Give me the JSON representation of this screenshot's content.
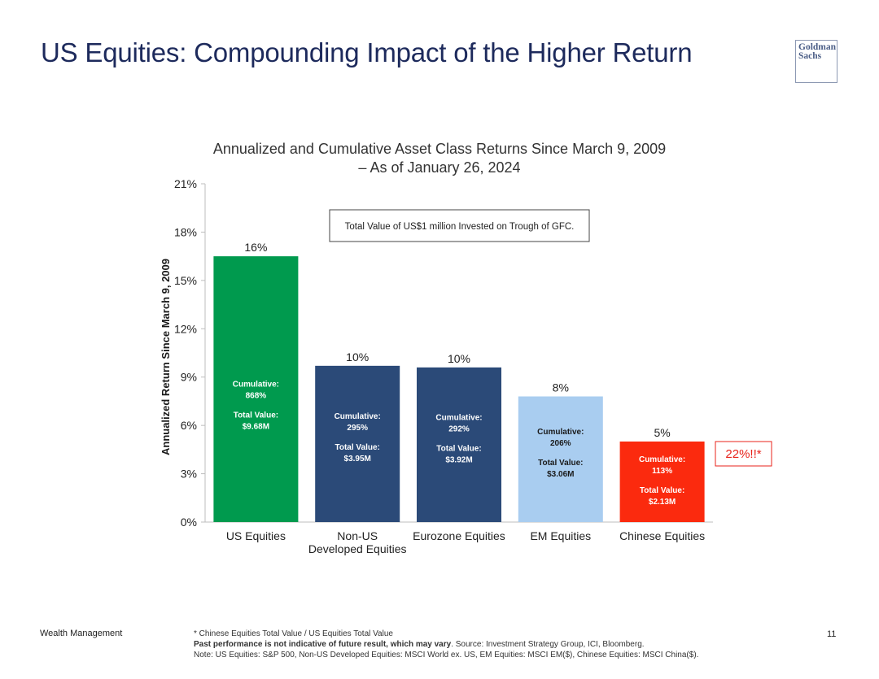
{
  "slide": {
    "title": "US Equities: Compounding Impact of the Higher Return",
    "logo_lines": [
      "Goldman",
      "Sachs"
    ],
    "footer_left": "Wealth Management",
    "page_number": "11",
    "footnote_1": "* Chinese Equities Total Value / US Equities Total Value",
    "footnote_2_bold": "Past performance is not indicative of future result, which may vary",
    "footnote_2_rest": ". Source: Investment Strategy Group, ICI, Bloomberg.",
    "footnote_3": "Note: US Equities: S&P 500, Non-US Developed Equities: MSCI World ex. US, EM Equities: MSCI EM($), Chinese Equities: MSCI China($)."
  },
  "chart_data": {
    "type": "bar",
    "title_lines": [
      "Annualized and Cumulative Asset Class Returns Since March 9, 2009",
      "– As of January 26, 2024"
    ],
    "ylabel": "Annualized Return Since March 9, 2009",
    "ylim": [
      0,
      21
    ],
    "yticks": [
      0,
      3,
      6,
      9,
      12,
      15,
      18,
      21
    ],
    "ytick_labels": [
      "0%",
      "3%",
      "6%",
      "9%",
      "12%",
      "15%",
      "18%",
      "21%"
    ],
    "grid": false,
    "categories": [
      [
        "US Equities"
      ],
      [
        "Non-US",
        "Developed Equities"
      ],
      [
        "Eurozone Equities"
      ],
      [
        "EM Equities"
      ],
      [
        "Chinese Equities"
      ]
    ],
    "values": [
      16.5,
      9.7,
      9.6,
      7.8,
      5.0
    ],
    "value_labels": [
      "16%",
      "10%",
      "10%",
      "8%",
      "5%"
    ],
    "colors": [
      "#009a4e",
      "#2b4a78",
      "#2b4a78",
      "#a9cdf0",
      "#fb2a0e"
    ],
    "bar_label_colors": [
      "#ffffff",
      "#ffffff",
      "#ffffff",
      "#1a1a1a",
      "#ffffff"
    ],
    "cumulative_label": "Cumulative:",
    "total_value_label": "Total Value:",
    "cumulative": [
      "868%",
      "295%",
      "292%",
      "206%",
      "113%"
    ],
    "total_value": [
      "$9.68M",
      "$3.95M",
      "$3.92M",
      "$3.06M",
      "$2.13M"
    ],
    "annotation_box": "Total Value of US$1 million Invested on Trough of GFC.",
    "callout": "22%!!*",
    "callout_color": "#e8231b"
  }
}
